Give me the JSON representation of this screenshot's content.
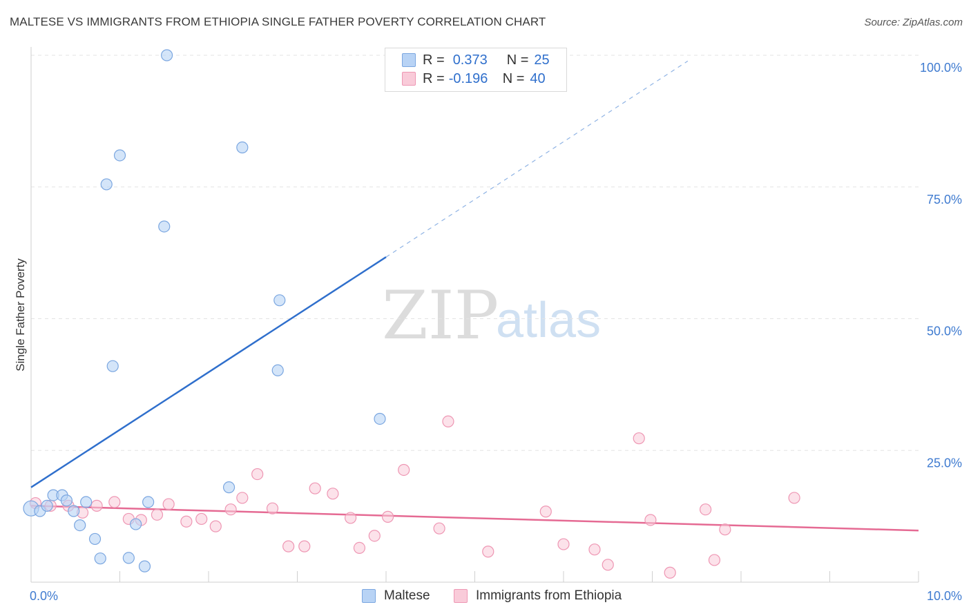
{
  "title": "MALTESE VS IMMIGRANTS FROM ETHIOPIA SINGLE FATHER POVERTY CORRELATION CHART",
  "source": "Source: ZipAtlas.com",
  "legend": {
    "rows": [
      {
        "r_label": "R =",
        "r_value": "0.373",
        "n_label": "N =",
        "n_value": "25"
      },
      {
        "r_label": "R =",
        "r_value": "-0.196",
        "n_label": "N =",
        "n_value": "40"
      }
    ]
  },
  "bottom_legend": [
    "Maltese",
    "Immigrants from Ethiopia"
  ],
  "watermark": {
    "zip": "ZIP",
    "atlas": "atlas"
  },
  "colors": {
    "maltese_fill": "#b8d3f5",
    "maltese_stroke": "#7aa6e0",
    "maltese_line": "#2f6fcc",
    "ethiopia_fill": "#f9cbd9",
    "ethiopia_stroke": "#ee96b3",
    "ethiopia_line": "#e56a93",
    "tick_text": "#3f7bd0",
    "grid": "#e3e3e3"
  },
  "chart_data": {
    "type": "scatter",
    "title": "MALTESE VS IMMIGRANTS FROM ETHIOPIA SINGLE FATHER POVERTY CORRELATION CHART",
    "xlabel": "",
    "ylabel": "Single Father Poverty",
    "xlim": [
      0,
      10
    ],
    "ylim": [
      0,
      100
    ],
    "x_tick_labels": [
      "0.0%",
      "10.0%"
    ],
    "y_tick_values": [
      25,
      50,
      75,
      100
    ],
    "y_tick_labels": [
      "25.0%",
      "50.0%",
      "75.0%",
      "100.0%"
    ],
    "grid": "horizontal dashed",
    "legend_position": "top-center",
    "series": [
      {
        "name": "Maltese",
        "r": 0.373,
        "n": 25,
        "trend": {
          "x": [
            0.0,
            4.0
          ],
          "y": [
            18.0,
            61.7
          ],
          "dashed_to": [
            7.4,
            98.9
          ]
        },
        "points": [
          [
            0.0,
            14.0
          ],
          [
            0.1,
            13.5
          ],
          [
            0.18,
            14.5
          ],
          [
            0.25,
            16.5
          ],
          [
            0.35,
            16.5
          ],
          [
            0.4,
            15.5
          ],
          [
            0.48,
            13.5
          ],
          [
            0.55,
            10.8
          ],
          [
            0.62,
            15.2
          ],
          [
            0.72,
            8.2
          ],
          [
            0.78,
            4.5
          ],
          [
            0.85,
            75.5
          ],
          [
            0.92,
            41.0
          ],
          [
            1.0,
            81.0
          ],
          [
            1.1,
            4.6
          ],
          [
            1.18,
            11.0
          ],
          [
            1.28,
            3.0
          ],
          [
            1.32,
            15.2
          ],
          [
            1.5,
            67.5
          ],
          [
            1.53,
            100.0
          ],
          [
            2.23,
            18.0
          ],
          [
            2.38,
            82.5
          ],
          [
            2.78,
            40.2
          ],
          [
            2.8,
            53.5
          ],
          [
            3.93,
            31.0
          ]
        ]
      },
      {
        "name": "Immigrants from Ethiopia",
        "r": -0.196,
        "n": 40,
        "trend": {
          "x": [
            0.0,
            10.0
          ],
          "y": [
            14.5,
            9.8
          ]
        },
        "points": [
          [
            0.05,
            15.0
          ],
          [
            0.22,
            14.5
          ],
          [
            0.42,
            14.5
          ],
          [
            0.58,
            13.2
          ],
          [
            0.74,
            14.5
          ],
          [
            0.94,
            15.2
          ],
          [
            1.1,
            12.0
          ],
          [
            1.24,
            11.8
          ],
          [
            1.42,
            12.8
          ],
          [
            1.55,
            14.8
          ],
          [
            1.75,
            11.5
          ],
          [
            1.92,
            12.0
          ],
          [
            2.08,
            10.6
          ],
          [
            2.25,
            13.8
          ],
          [
            2.38,
            16.0
          ],
          [
            2.55,
            20.5
          ],
          [
            2.72,
            14.0
          ],
          [
            2.9,
            6.8
          ],
          [
            3.08,
            6.8
          ],
          [
            3.2,
            17.8
          ],
          [
            3.4,
            16.8
          ],
          [
            3.6,
            12.2
          ],
          [
            3.7,
            6.5
          ],
          [
            3.87,
            8.8
          ],
          [
            4.02,
            12.4
          ],
          [
            4.2,
            21.3
          ],
          [
            4.6,
            10.2
          ],
          [
            4.7,
            30.5
          ],
          [
            5.15,
            5.8
          ],
          [
            5.8,
            13.4
          ],
          [
            6.0,
            7.2
          ],
          [
            6.35,
            6.2
          ],
          [
            6.5,
            3.3
          ],
          [
            6.85,
            27.3
          ],
          [
            6.98,
            11.8
          ],
          [
            7.2,
            1.8
          ],
          [
            7.6,
            13.8
          ],
          [
            7.7,
            4.2
          ],
          [
            7.82,
            10.0
          ],
          [
            8.6,
            16.0
          ]
        ]
      }
    ]
  }
}
